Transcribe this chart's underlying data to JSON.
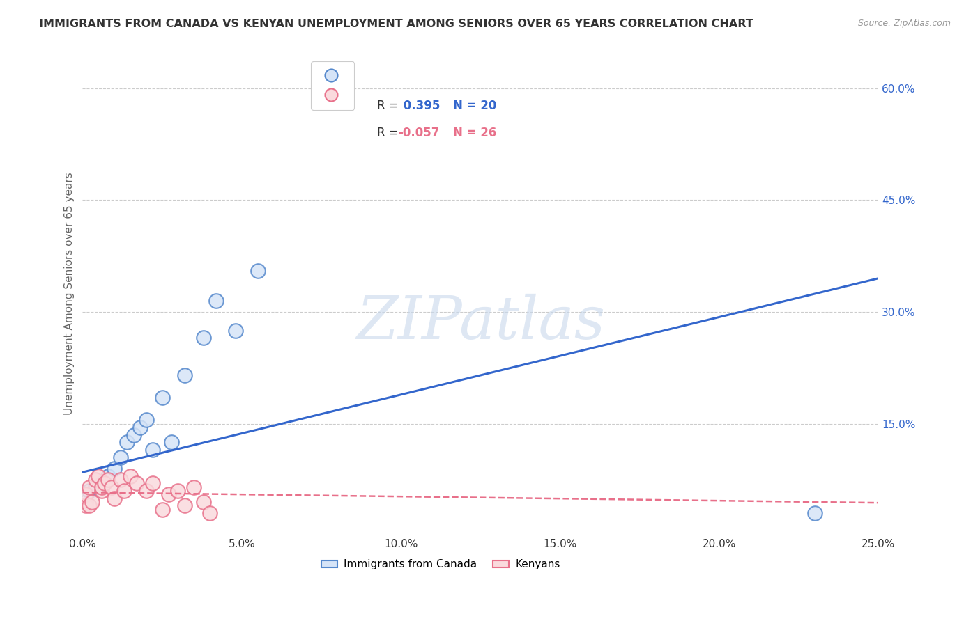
{
  "title": "IMMIGRANTS FROM CANADA VS KENYAN UNEMPLOYMENT AMONG SENIORS OVER 65 YEARS CORRELATION CHART",
  "source": "Source: ZipAtlas.com",
  "ylabel": "Unemployment Among Seniors over 65 years",
  "r1": 0.395,
  "n1": 20,
  "r2": -0.057,
  "n2": 26,
  "blue_fill": "#D6E4F7",
  "blue_edge": "#5588CC",
  "pink_fill": "#FADADD",
  "pink_edge": "#E8708A",
  "blue_line_color": "#3366CC",
  "pink_line_color": "#E8708A",
  "xlim": [
    0.0,
    0.25
  ],
  "ylim": [
    0.0,
    0.65
  ],
  "xticks": [
    0.0,
    0.05,
    0.1,
    0.15,
    0.2,
    0.25
  ],
  "yticks_right": [
    0.15,
    0.3,
    0.45,
    0.6
  ],
  "blue_scatter_x": [
    0.001,
    0.002,
    0.004,
    0.006,
    0.008,
    0.01,
    0.012,
    0.014,
    0.016,
    0.018,
    0.02,
    0.022,
    0.025,
    0.028,
    0.032,
    0.038,
    0.042,
    0.048,
    0.055,
    0.23
  ],
  "blue_scatter_y": [
    0.045,
    0.06,
    0.065,
    0.07,
    0.08,
    0.09,
    0.105,
    0.125,
    0.135,
    0.145,
    0.155,
    0.115,
    0.185,
    0.125,
    0.215,
    0.265,
    0.315,
    0.275,
    0.355,
    0.03
  ],
  "pink_scatter_x": [
    0.001,
    0.001,
    0.002,
    0.002,
    0.003,
    0.004,
    0.005,
    0.006,
    0.006,
    0.007,
    0.008,
    0.009,
    0.01,
    0.012,
    0.013,
    0.015,
    0.017,
    0.02,
    0.022,
    0.025,
    0.027,
    0.03,
    0.032,
    0.035,
    0.038,
    0.04
  ],
  "pink_scatter_y": [
    0.04,
    0.055,
    0.04,
    0.065,
    0.045,
    0.075,
    0.08,
    0.06,
    0.065,
    0.07,
    0.075,
    0.065,
    0.05,
    0.075,
    0.06,
    0.08,
    0.07,
    0.06,
    0.07,
    0.035,
    0.055,
    0.06,
    0.04,
    0.065,
    0.045,
    0.03
  ],
  "blue_line_x": [
    0.0,
    0.25
  ],
  "blue_line_y": [
    0.085,
    0.345
  ],
  "pink_line_x": [
    0.0,
    0.25
  ],
  "pink_line_y": [
    0.058,
    0.044
  ],
  "marker_size": 220,
  "legend1_label": "Immigrants from Canada",
  "legend2_label": "Kenyans",
  "watermark_text": "ZIPatlas",
  "watermark_color": "#C8D8EC",
  "background_color": "#FFFFFF",
  "grid_color": "#CCCCCC",
  "title_color": "#333333",
  "source_color": "#999999",
  "ylabel_color": "#666666",
  "tick_color": "#333333",
  "right_tick_color": "#3366CC"
}
